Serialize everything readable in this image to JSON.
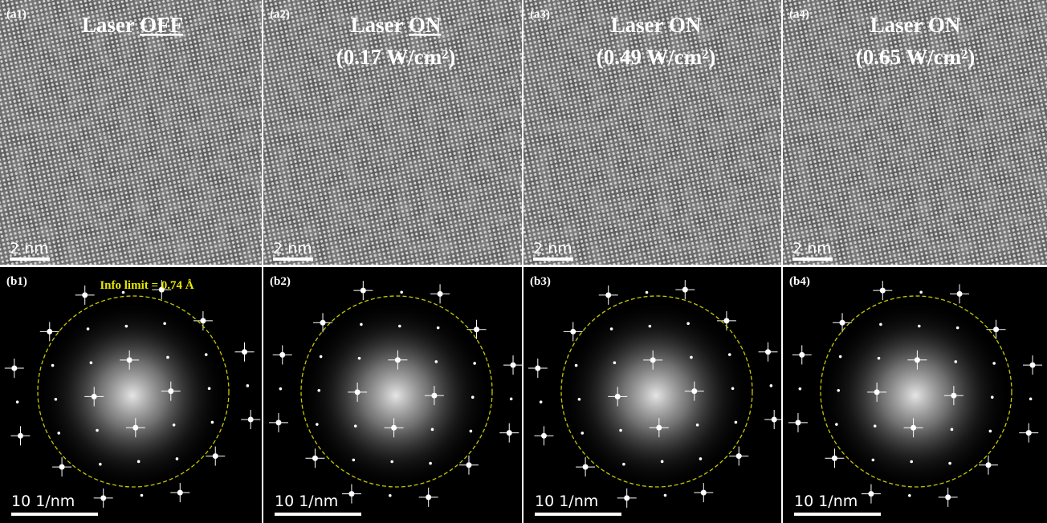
{
  "top_panels": [
    {
      "label": "(a1)",
      "title": "Laser",
      "title_emphasis": "OFF",
      "scale_bar": "2 nm"
    },
    {
      "label": "(a2)",
      "title": "Laser",
      "title_emphasis": "ON",
      "power": "(0.17 W/cm²)",
      "scale_bar": "2 nm"
    },
    {
      "label": "(a3)",
      "title": "Laser ON",
      "power": "(0.49 W/cm²)",
      "scale_bar": "2 nm"
    },
    {
      "label": "(a4)",
      "title": "Laser ON",
      "power": "(0.65 W/cm²)",
      "scale_bar": "2 nm"
    }
  ],
  "bottom_panels": [
    {
      "label": "(b1)",
      "annotation": "Info limit = 0.74 Å",
      "scale_bar": "10 1/nm"
    },
    {
      "label": "(b2)",
      "scale_bar": "10 1/nm"
    },
    {
      "label": "(b3)",
      "scale_bar": "10 1/nm"
    },
    {
      "label": "(b4)",
      "scale_bar": "10 1/nm"
    }
  ]
}
